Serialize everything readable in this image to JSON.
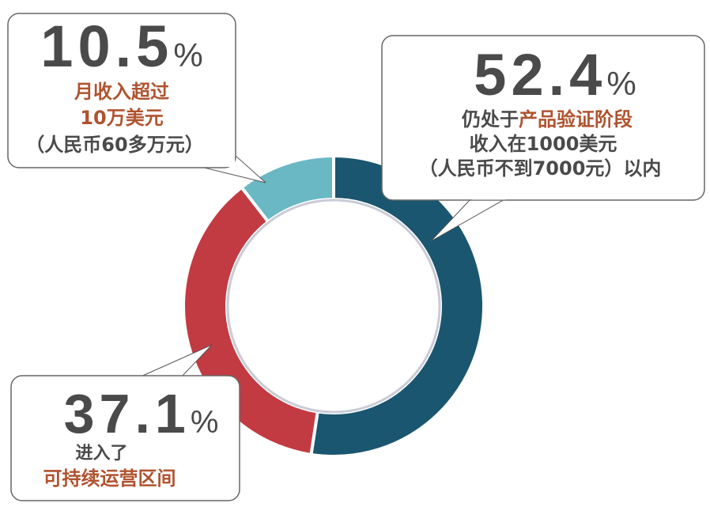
{
  "colors": {
    "text_dark": "#4a4a4a",
    "highlight": "#b0532f",
    "segment_dark_teal": "#1a566f",
    "segment_red": "#c23b42",
    "segment_light_teal": "#6ab8c4",
    "box_border": "#666666"
  },
  "chart_data": {
    "type": "pie",
    "subtype": "donut",
    "title": "",
    "categories": [
      "仍处于产品验证阶段",
      "进入了可持续运营区间",
      "月收入超过10万美元"
    ],
    "values": [
      52.4,
      37.1,
      10.5
    ],
    "unit": "%",
    "colors": [
      "#1a566f",
      "#c23b42",
      "#6ab8c4"
    ],
    "start_angle_deg": 0,
    "direction": "clockwise",
    "legend": "callouts"
  },
  "callouts": {
    "top_left": {
      "value": "10.5",
      "percent": "%",
      "line1": "月收入超过",
      "line2": "10万美元",
      "line3": "（人民币60多万元）"
    },
    "right": {
      "value": "52.4",
      "percent": "%",
      "line1_plain": "仍处于",
      "line1_highlight": "产品验证阶段",
      "line2": "收入在1000美元",
      "line3": "（人民币不到7000元）以内"
    },
    "bottom_left": {
      "value": "37.1",
      "percent": "%",
      "line1": "进入了",
      "line2": "可持续运营区间"
    }
  }
}
